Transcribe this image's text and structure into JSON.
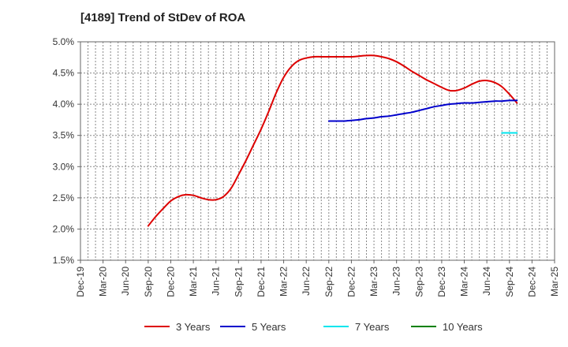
{
  "chart_data": {
    "type": "line",
    "title": "[4189]  Trend of StDev of ROA",
    "xlabel": "",
    "ylabel": "",
    "ylim": [
      1.5,
      5.0
    ],
    "yticks": [
      "1.5%",
      "2.0%",
      "2.5%",
      "3.0%",
      "3.5%",
      "4.0%",
      "4.5%",
      "5.0%"
    ],
    "xticks": [
      "Dec-19",
      "Mar-20",
      "Jun-20",
      "Sep-20",
      "Dec-20",
      "Mar-21",
      "Jun-21",
      "Sep-21",
      "Dec-21",
      "Mar-22",
      "Jun-22",
      "Sep-22",
      "Dec-22",
      "Mar-23",
      "Jun-23",
      "Sep-23",
      "Dec-23",
      "Mar-24",
      "Jun-24",
      "Sep-24",
      "Dec-24",
      "Mar-25"
    ],
    "grid": true,
    "legend_position": "bottom",
    "series": [
      {
        "name": "3 Years",
        "color": "#dd0000",
        "points": [
          [
            "Sep-20",
            2.05
          ],
          [
            "Oct-20",
            2.2
          ],
          [
            "Nov-20",
            2.33
          ],
          [
            "Dec-20",
            2.45
          ],
          [
            "Jan-21",
            2.52
          ],
          [
            "Feb-21",
            2.55
          ],
          [
            "Mar-21",
            2.54
          ],
          [
            "Apr-21",
            2.5
          ],
          [
            "May-21",
            2.47
          ],
          [
            "Jun-21",
            2.47
          ],
          [
            "Jul-21",
            2.52
          ],
          [
            "Aug-21",
            2.65
          ],
          [
            "Sep-21",
            2.87
          ],
          [
            "Oct-21",
            3.1
          ],
          [
            "Nov-21",
            3.35
          ],
          [
            "Dec-21",
            3.6
          ],
          [
            "Jan-22",
            3.88
          ],
          [
            "Feb-22",
            4.18
          ],
          [
            "Mar-22",
            4.43
          ],
          [
            "Apr-22",
            4.6
          ],
          [
            "May-22",
            4.7
          ],
          [
            "Jun-22",
            4.74
          ],
          [
            "Jul-22",
            4.76
          ],
          [
            "Aug-22",
            4.76
          ],
          [
            "Sep-22",
            4.76
          ],
          [
            "Oct-22",
            4.76
          ],
          [
            "Nov-22",
            4.76
          ],
          [
            "Dec-22",
            4.76
          ],
          [
            "Jan-23",
            4.77
          ],
          [
            "Feb-23",
            4.78
          ],
          [
            "Mar-23",
            4.78
          ],
          [
            "Apr-23",
            4.76
          ],
          [
            "May-23",
            4.73
          ],
          [
            "Jun-23",
            4.68
          ],
          [
            "Jul-23",
            4.61
          ],
          [
            "Aug-23",
            4.53
          ],
          [
            "Sep-23",
            4.46
          ],
          [
            "Oct-23",
            4.39
          ],
          [
            "Nov-23",
            4.33
          ],
          [
            "Dec-23",
            4.27
          ],
          [
            "Jan-24",
            4.22
          ],
          [
            "Feb-24",
            4.22
          ],
          [
            "Mar-24",
            4.26
          ],
          [
            "Apr-24",
            4.32
          ],
          [
            "May-24",
            4.37
          ],
          [
            "Jun-24",
            4.38
          ],
          [
            "Jul-24",
            4.35
          ],
          [
            "Aug-24",
            4.28
          ],
          [
            "Sep-24",
            4.16
          ],
          [
            "Oct-24",
            4.02
          ]
        ]
      },
      {
        "name": "5 Years",
        "color": "#0000cc",
        "points": [
          [
            "Sep-22",
            3.73
          ],
          [
            "Oct-22",
            3.73
          ],
          [
            "Nov-22",
            3.73
          ],
          [
            "Dec-22",
            3.74
          ],
          [
            "Jan-23",
            3.75
          ],
          [
            "Feb-23",
            3.77
          ],
          [
            "Mar-23",
            3.78
          ],
          [
            "Apr-23",
            3.8
          ],
          [
            "May-23",
            3.81
          ],
          [
            "Jun-23",
            3.83
          ],
          [
            "Jul-23",
            3.85
          ],
          [
            "Aug-23",
            3.87
          ],
          [
            "Sep-23",
            3.9
          ],
          [
            "Oct-23",
            3.93
          ],
          [
            "Nov-23",
            3.96
          ],
          [
            "Dec-23",
            3.98
          ],
          [
            "Jan-24",
            4.0
          ],
          [
            "Feb-24",
            4.01
          ],
          [
            "Mar-24",
            4.02
          ],
          [
            "Apr-24",
            4.02
          ],
          [
            "May-24",
            4.03
          ],
          [
            "Jun-24",
            4.04
          ],
          [
            "Jul-24",
            4.05
          ],
          [
            "Aug-24",
            4.05
          ],
          [
            "Sep-24",
            4.06
          ],
          [
            "Oct-24",
            4.06
          ]
        ]
      },
      {
        "name": "7 Years",
        "color": "#00e5ee",
        "points": [
          [
            "Aug-24",
            3.54
          ],
          [
            "Sep-24",
            3.54
          ],
          [
            "Oct-24",
            3.54
          ]
        ]
      },
      {
        "name": "10 Years",
        "color": "#008000",
        "points": []
      }
    ]
  }
}
